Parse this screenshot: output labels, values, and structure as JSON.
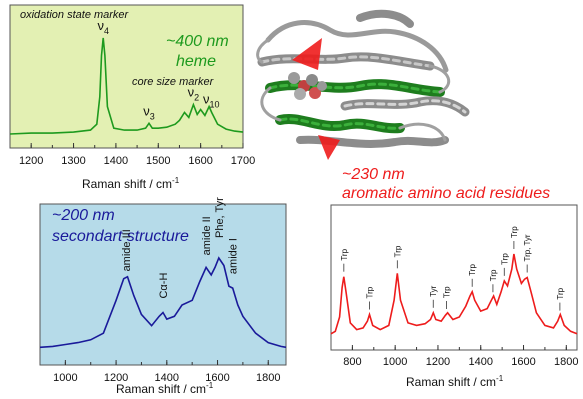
{
  "chart_data": [
    {
      "type": "line",
      "panel": "heme",
      "title": "~400 nm heme",
      "title_line1": "~400 nm",
      "title_line2": "heme",
      "title_color": "#1e9a1e",
      "line_color": "#1e9a1e",
      "background": "#e3f0b3",
      "xlabel": "Raman shift / cm",
      "xlabel_sup": "-1",
      "xlim": [
        1150,
        1700
      ],
      "x_ticks": [
        1200,
        1300,
        1400,
        1500,
        1600,
        1700
      ],
      "annotations": [
        "oxidation state marker",
        "core size marker"
      ],
      "peak_labels": [
        {
          "base": "ν",
          "sub": "4",
          "x": 1370
        },
        {
          "base": "ν",
          "sub": "3",
          "x": 1478
        },
        {
          "base": "ν",
          "sub": "2",
          "x": 1583
        },
        {
          "base": "ν",
          "sub": "10",
          "x": 1625
        }
      ],
      "x": [
        1150,
        1200,
        1250,
        1300,
        1340,
        1355,
        1362,
        1366,
        1370,
        1374,
        1380,
        1395,
        1420,
        1450,
        1470,
        1478,
        1486,
        1500,
        1520,
        1540,
        1550,
        1562,
        1572,
        1583,
        1592,
        1600,
        1610,
        1620,
        1626,
        1640,
        1660,
        1680,
        1700
      ],
      "y": [
        0.02,
        0.03,
        0.03,
        0.04,
        0.06,
        0.12,
        0.4,
        0.82,
        1.0,
        0.82,
        0.3,
        0.08,
        0.06,
        0.06,
        0.08,
        0.13,
        0.08,
        0.08,
        0.09,
        0.12,
        0.16,
        0.24,
        0.19,
        0.32,
        0.22,
        0.27,
        0.21,
        0.3,
        0.24,
        0.12,
        0.07,
        0.05,
        0.04
      ]
    },
    {
      "type": "line",
      "panel": "secondary-structure",
      "title": "~200 nm secondart structure",
      "title_line1": "~200 nm",
      "title_line2": "secondart structure",
      "title_color": "#1a1a9a",
      "line_color": "#1a1a9a",
      "background": "#b6dbe9",
      "xlabel": "Raman shift / cm",
      "xlabel_sup": "-1",
      "xlim": [
        900,
        1870
      ],
      "x_ticks": [
        1000,
        1200,
        1400,
        1600,
        1800
      ],
      "peak_labels": [
        {
          "text": "amide III",
          "x": 1240
        },
        {
          "text": "Cα-H",
          "x": 1385
        },
        {
          "text": "amide II",
          "x": 1555
        },
        {
          "text": "Phe, Tyr",
          "x": 1605
        },
        {
          "text": "amide I",
          "x": 1660
        }
      ],
      "x": [
        900,
        950,
        1000,
        1050,
        1100,
        1150,
        1200,
        1230,
        1245,
        1270,
        1300,
        1340,
        1370,
        1385,
        1400,
        1430,
        1460,
        1500,
        1530,
        1555,
        1575,
        1590,
        1605,
        1625,
        1645,
        1660,
        1680,
        1700,
        1750,
        1800,
        1850,
        1870
      ],
      "y": [
        0.05,
        0.06,
        0.08,
        0.1,
        0.13,
        0.2,
        0.55,
        0.78,
        0.8,
        0.6,
        0.4,
        0.28,
        0.38,
        0.42,
        0.35,
        0.38,
        0.5,
        0.55,
        0.75,
        0.9,
        0.82,
        0.9,
        1.0,
        0.92,
        0.7,
        0.68,
        0.5,
        0.38,
        0.2,
        0.1,
        0.06,
        0.05
      ]
    },
    {
      "type": "line",
      "panel": "aromatic",
      "title": "~230 nm aromatic amino acid residues",
      "title_line1": "~230 nm",
      "title_line2": "aromatic amino acid residues",
      "title_color": "#ee1c1c",
      "line_color": "#ee1c1c",
      "background": "#ffffff",
      "xlabel": "Raman shift / cm",
      "xlabel_sup": "-1",
      "xlim": [
        700,
        1850
      ],
      "x_ticks": [
        800,
        1000,
        1200,
        1400,
        1600,
        1800
      ],
      "peak_labels": [
        {
          "text": "Trp",
          "x": 760
        },
        {
          "text": "Trp",
          "x": 880
        },
        {
          "text": "Trp",
          "x": 1010
        },
        {
          "text": "Tyr",
          "x": 1178
        },
        {
          "text": "Trp",
          "x": 1240
        },
        {
          "text": "Trp",
          "x": 1360
        },
        {
          "text": "Trp",
          "x": 1457
        },
        {
          "text": "Trp",
          "x": 1510
        },
        {
          "text": "Trp",
          "x": 1555
        },
        {
          "text": "Trp, Tyr",
          "x": 1617
        },
        {
          "text": "Trp",
          "x": 1770
        }
      ],
      "x": [
        700,
        720,
        740,
        752,
        760,
        770,
        790,
        820,
        850,
        870,
        880,
        895,
        930,
        970,
        995,
        1010,
        1025,
        1060,
        1100,
        1140,
        1165,
        1178,
        1190,
        1215,
        1235,
        1245,
        1270,
        1300,
        1330,
        1350,
        1360,
        1372,
        1400,
        1430,
        1450,
        1460,
        1475,
        1495,
        1510,
        1525,
        1545,
        1555,
        1568,
        1590,
        1605,
        1617,
        1635,
        1660,
        1700,
        1740,
        1760,
        1772,
        1790,
        1820,
        1850
      ],
      "y": [
        0.05,
        0.08,
        0.25,
        0.6,
        0.73,
        0.55,
        0.18,
        0.1,
        0.12,
        0.2,
        0.28,
        0.15,
        0.1,
        0.15,
        0.45,
        0.77,
        0.45,
        0.18,
        0.15,
        0.17,
        0.22,
        0.3,
        0.22,
        0.2,
        0.27,
        0.3,
        0.22,
        0.25,
        0.38,
        0.5,
        0.55,
        0.45,
        0.32,
        0.35,
        0.45,
        0.5,
        0.4,
        0.55,
        0.68,
        0.62,
        0.82,
        1.0,
        0.82,
        0.65,
        0.7,
        0.72,
        0.55,
        0.3,
        0.15,
        0.12,
        0.2,
        0.28,
        0.15,
        0.08,
        0.05
      ]
    }
  ]
}
